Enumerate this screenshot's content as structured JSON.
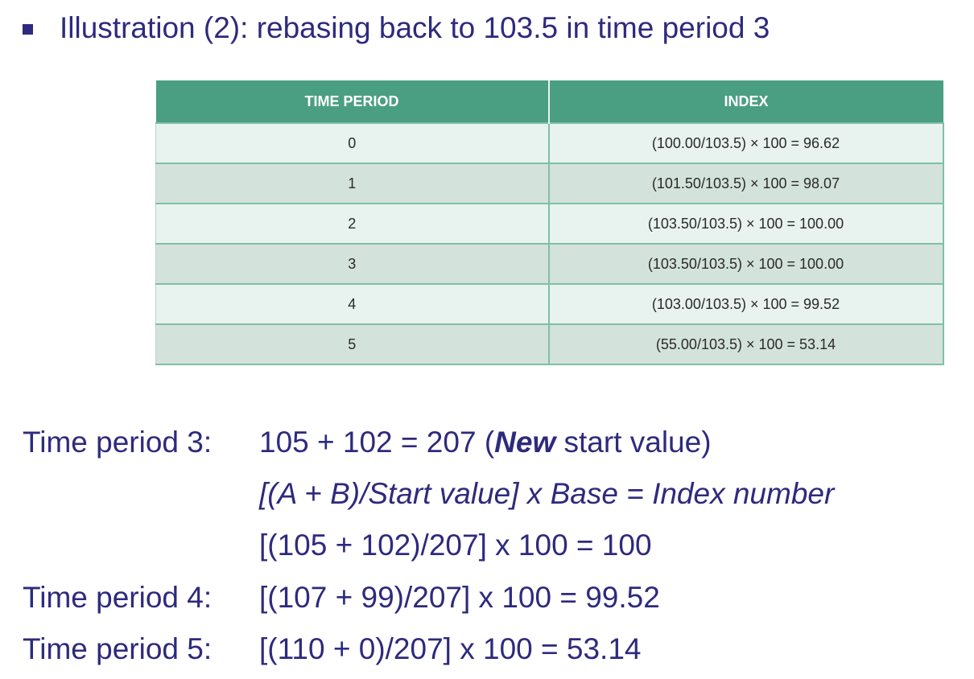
{
  "heading": {
    "bullet": "square-bullet",
    "text": "Illustration (2): rebasing back to 103.5 in time period 3"
  },
  "table": {
    "headers": [
      "TIME PERIOD",
      "INDEX"
    ],
    "rows": [
      {
        "period": "0",
        "index": "(100.00/103.5) × 100 = 96.62"
      },
      {
        "period": "1",
        "index": "(101.50/103.5) × 100 = 98.07"
      },
      {
        "period": "2",
        "index": "(103.50/103.5) × 100 = 100.00"
      },
      {
        "period": "3",
        "index": "(103.50/103.5) × 100 = 100.00"
      },
      {
        "period": "4",
        "index": "(103.00/103.5) × 100 = 99.52"
      },
      {
        "period": "5",
        "index": "(55.00/103.5) × 100 = 53.14"
      }
    ],
    "colors": {
      "header": "#4a9e82",
      "row_light": "#e8f2ee",
      "row_dark": "#d3e2db"
    }
  },
  "calc": {
    "line1": {
      "label": "Time period 3:",
      "before": "105 + 102 = 207 (",
      "emphasis": "New",
      "after": " start value)"
    },
    "line2": "[(A + B)/Start value] x Base = Index number",
    "line3": "[(105 + 102)/207] x 100 = 100",
    "line4": {
      "label": "Time period 4:",
      "expr": "[(107 + 99)/207] x 100 = 99.52"
    },
    "line5": {
      "label": "Time period 5:",
      "expr": "[(110 + 0)/207] x 100 = 53.14"
    }
  },
  "text_color": "#2e2a7d"
}
